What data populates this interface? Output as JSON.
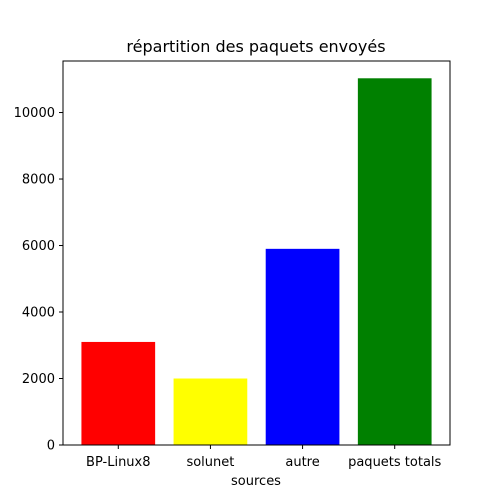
{
  "chart_data": {
    "type": "bar",
    "title": "répartition des paquets envoyés",
    "xlabel": "sources",
    "ylabel": "",
    "categories": [
      "BP-Linux8",
      "solunet",
      "autre",
      "paquets totals"
    ],
    "values": [
      3100,
      2000,
      5900,
      11030
    ],
    "colors": [
      "#ff0000",
      "#ffff00",
      "#0000ff",
      "#008000"
    ],
    "ylim": [
      0,
      11550
    ],
    "yticks": [
      0,
      2000,
      4000,
      6000,
      8000,
      10000
    ],
    "grid": false,
    "legend": "none"
  }
}
